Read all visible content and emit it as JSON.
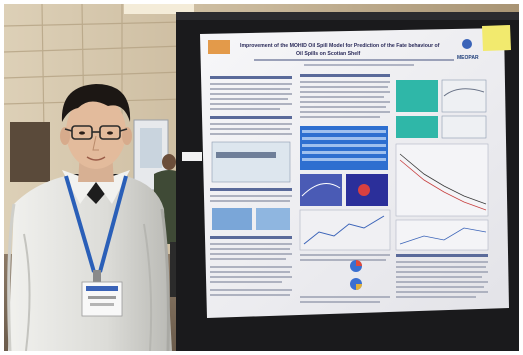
{
  "photo": {
    "poster": {
      "title_line_1": "Improvement of the MOHID Oil Spill Model for Prediction of the Fate behaviour of",
      "title_line_2": "Oil Spills on Scotian Shelf",
      "logo_right_text": "MEOPAR"
    },
    "colors": {
      "wall": "#c8b79a",
      "poster_board": "#1a1a1c",
      "poster_paper": "#f4f4f6",
      "lanyard": "#2a5fb8",
      "shirt": "#e6e6e2",
      "hair": "#1c1714",
      "sticky_note": "#f2ea6e"
    }
  }
}
